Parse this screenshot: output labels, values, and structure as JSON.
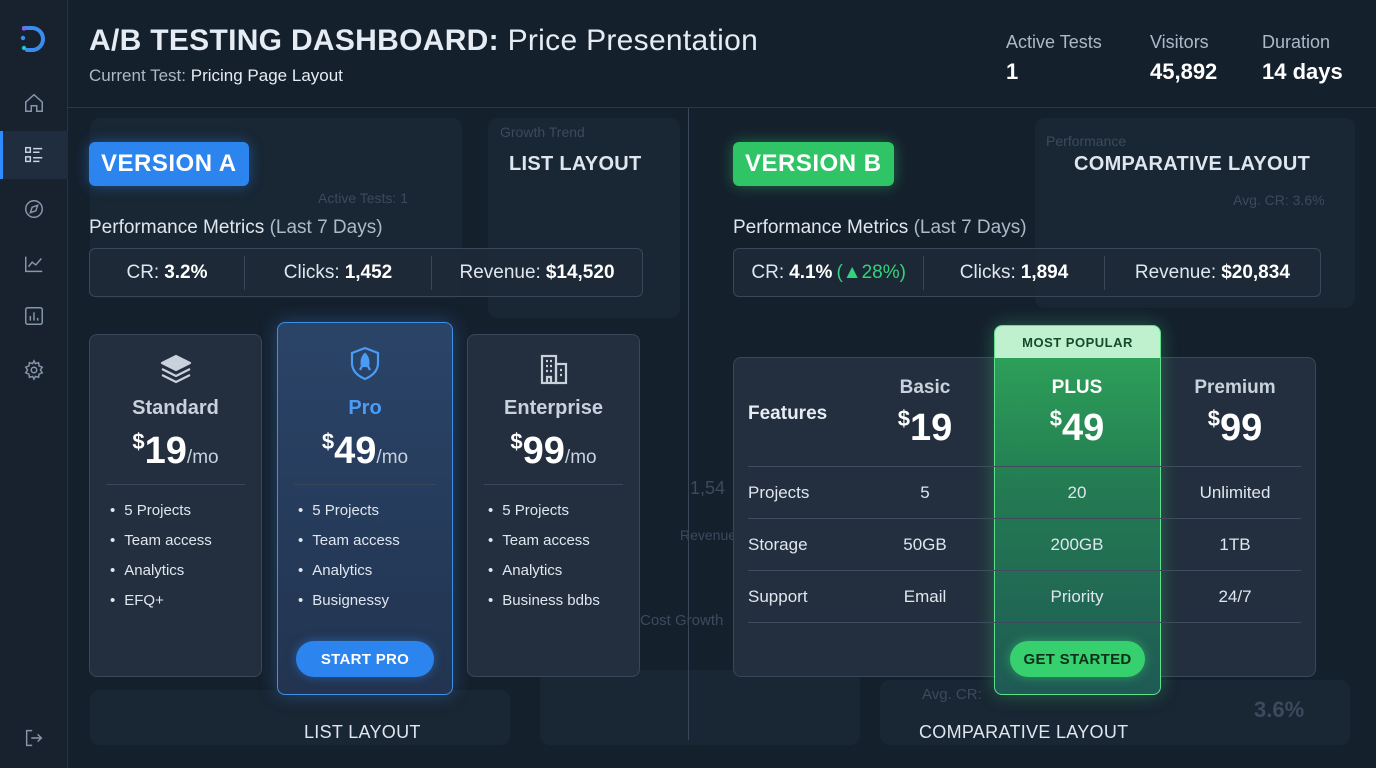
{
  "header": {
    "title_bold": "A/B TESTING DASHBOARD:",
    "title_rest": "Price Presentation",
    "subtitle_label": "Current Test:",
    "subtitle_value": "Pricing Page Layout",
    "stats": [
      {
        "label": "Active Tests",
        "value": "1"
      },
      {
        "label": "Visitors",
        "value": "45,892"
      },
      {
        "label": "Duration",
        "value": "14 days"
      }
    ]
  },
  "sidebar": {
    "items": [
      {
        "icon": "home-icon"
      },
      {
        "icon": "list-icon",
        "active": true
      },
      {
        "icon": "compass-icon"
      },
      {
        "icon": "trend-chart-icon"
      },
      {
        "icon": "bar-chart-icon"
      },
      {
        "icon": "gear-icon"
      }
    ],
    "logout_icon": "logout-icon"
  },
  "background_ghost": {
    "texts": [
      "Growth Trend",
      "Active Tests: 1",
      "Performance",
      "Avg. CR: 3.6%",
      "Avg. CR:",
      "3.6%",
      "Revenue",
      "Cost Growth",
      "1,54"
    ]
  },
  "version_a": {
    "badge": "VERSION A",
    "layout_tag": "LIST LAYOUT",
    "perf_title": "Performance Metrics",
    "perf_period": "(Last 7 Days)",
    "metrics": [
      {
        "label": "CR:",
        "value": "3.2%"
      },
      {
        "label": "Clicks:",
        "value": "1,452"
      },
      {
        "label": "Revenue:",
        "value": "$14,520"
      }
    ],
    "cards": [
      {
        "name": "Standard",
        "currency": "$",
        "amount": "19",
        "period": "/mo",
        "features": [
          "5 Projects",
          "Team access",
          "Analytics",
          "EFQ+"
        ]
      },
      {
        "name": "Pro",
        "currency": "$",
        "amount": "49",
        "period": "/mo",
        "features": [
          "5 Projects",
          "Team access",
          "Analytics",
          "Busignessy"
        ],
        "cta": "START PRO"
      },
      {
        "name": "Enterprise",
        "currency": "$",
        "amount": "99",
        "period": "/mo",
        "features": [
          "5 Projects",
          "Team access",
          "Analytics",
          "Business bdbs"
        ]
      }
    ],
    "footer": "LIST LAYOUT"
  },
  "version_b": {
    "badge": "VERSION B",
    "layout_tag": "COMPARATIVE LAYOUT",
    "perf_title": "Performance Metrics",
    "perf_period": "(Last 7 Days)",
    "metrics": [
      {
        "label": "CR:",
        "value": "4.1%",
        "delta": "(▲28%)"
      },
      {
        "label": "Clicks:",
        "value": "1,894"
      },
      {
        "label": "Revenue:",
        "value": "$20,834"
      }
    ],
    "table": {
      "features_header": "Features",
      "popular_badge": "MOST POPULAR",
      "plans": [
        {
          "name": "Basic",
          "currency": "$",
          "amount": "19"
        },
        {
          "name": "PLUS",
          "currency": "$",
          "amount": "49"
        },
        {
          "name": "Premium",
          "currency": "$",
          "amount": "99"
        }
      ],
      "rows": [
        {
          "label": "Projects",
          "values": [
            "5",
            "20",
            "Unlimited"
          ]
        },
        {
          "label": "Storage",
          "values": [
            "50GB",
            "200GB",
            "1TB"
          ]
        },
        {
          "label": "Support",
          "values": [
            "Email",
            "Priority",
            "24/7"
          ]
        }
      ],
      "cta": "GET STARTED"
    },
    "footer": "COMPARATIVE LAYOUT"
  },
  "colors": {
    "accent_blue": "#2c84ee",
    "accent_green": "#2fc566",
    "background": "#15202d"
  }
}
